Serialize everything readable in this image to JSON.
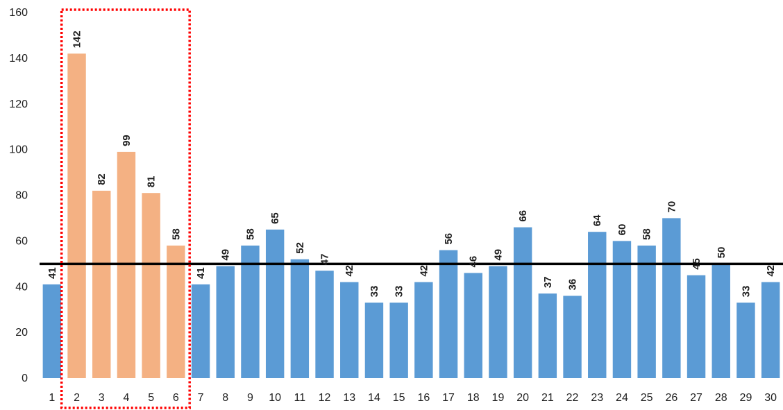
{
  "chart_data": {
    "type": "bar",
    "categories": [
      "1",
      "2",
      "3",
      "4",
      "5",
      "6",
      "7",
      "8",
      "9",
      "10",
      "11",
      "12",
      "13",
      "14",
      "15",
      "16",
      "17",
      "18",
      "19",
      "20",
      "21",
      "22",
      "23",
      "24",
      "25",
      "26",
      "27",
      "28",
      "29",
      "30"
    ],
    "values": [
      41,
      142,
      82,
      99,
      81,
      58,
      41,
      49,
      58,
      65,
      52,
      47,
      42,
      33,
      33,
      42,
      56,
      46,
      49,
      66,
      37,
      36,
      64,
      60,
      58,
      70,
      45,
      50,
      33,
      42
    ],
    "highlighted_categories": [
      "2",
      "3",
      "4",
      "5",
      "6"
    ],
    "reference_line": 50,
    "ylim": [
      0,
      160
    ],
    "yticks": [
      0,
      20,
      40,
      60,
      80,
      100,
      120,
      140,
      160
    ],
    "title": "",
    "xlabel": "",
    "ylabel": "",
    "grid": false,
    "legend": "none",
    "colors": {
      "bar": "#5b9bd5",
      "highlight_bar": "#f4b183",
      "reference_line": "#000000",
      "highlight_box": "#ff0000"
    }
  }
}
